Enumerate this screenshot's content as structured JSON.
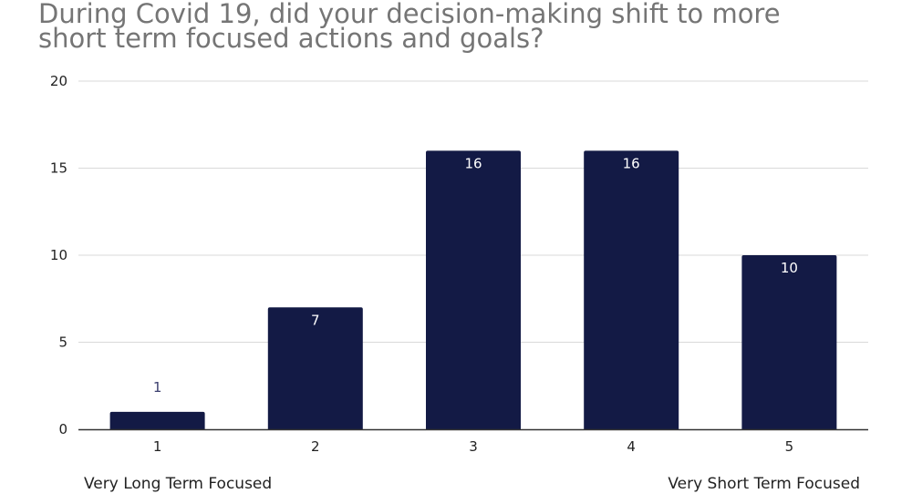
{
  "chart_data": {
    "type": "bar",
    "title": "During Covid 19, did your decision-making shift to more short term focused actions and goals?",
    "title_lines": [
      "During Covid 19, did your decision-making shift to more",
      "short term focused actions and goals?"
    ],
    "categories": [
      "1",
      "2",
      "3",
      "4",
      "5"
    ],
    "values": [
      1,
      7,
      16,
      16,
      10
    ],
    "ylim": [
      0,
      20
    ],
    "yticks": [
      0,
      5,
      10,
      15,
      20
    ],
    "xlabel": "",
    "ylabel": "",
    "grid": true,
    "legend": "none",
    "scale_labels": {
      "left": "Very Long Term Focused",
      "right": "Very Short Term Focused"
    },
    "colors": {
      "bar": "#131a45",
      "label_inside": "#ffffff",
      "label_outside": "#3b3f6e",
      "grid": "#d9d9d9",
      "axis": "#333333",
      "title": "#757575"
    }
  }
}
